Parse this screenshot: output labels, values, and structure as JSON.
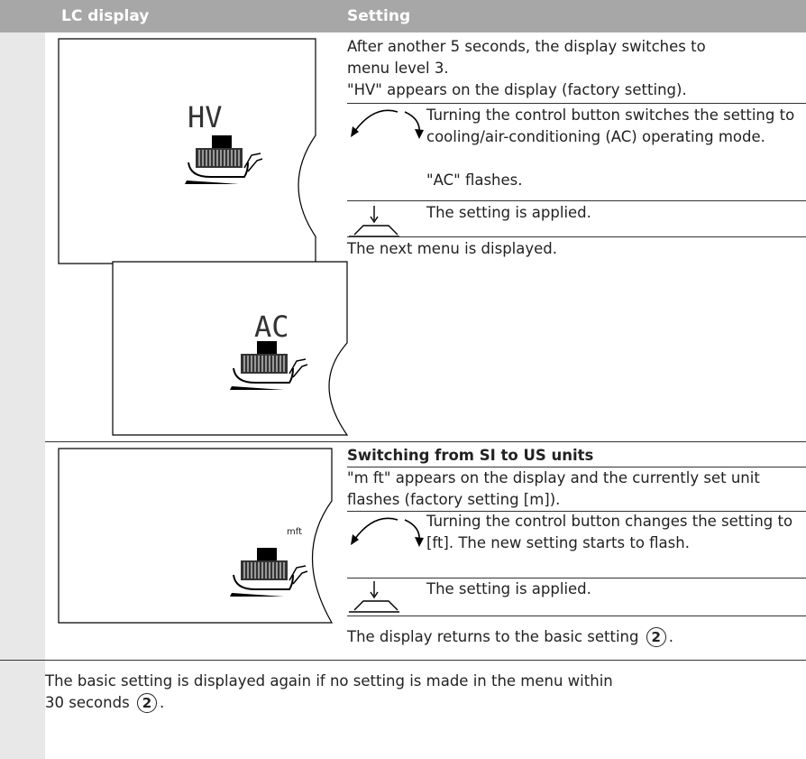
{
  "header": {
    "col1": "LC display",
    "col2": "Setting"
  },
  "rows": [
    {
      "displays": [
        "HV",
        "AC"
      ],
      "intro": [
        "After another 5 seconds, the display switches to menu level 3.",
        "\"HV\" appears on the display (factory setting)."
      ],
      "steps": [
        "Turning the control button switches the setting to cooling/air-conditioning (AC) operating mode.",
        "\"AC\" flashes.",
        "The setting is applied."
      ],
      "after": "The next menu is displayed."
    },
    {
      "displays": [
        "mft"
      ],
      "heading": "Switching from SI to US units",
      "intro": [
        "\"m ft\" appears on the display and the currently set unit flashes (factory setting [m])."
      ],
      "steps": [
        "Turning the control button changes the setting to [ft]. The new setting starts to flash.",
        "The setting is applied."
      ],
      "after": "The display returns to the basic setting",
      "after_ref": "2",
      "after_end": "."
    }
  ],
  "note": {
    "text": "The basic setting is displayed again if no setting is made in the menu within 30 seconds",
    "ref": "2",
    "end": "."
  }
}
